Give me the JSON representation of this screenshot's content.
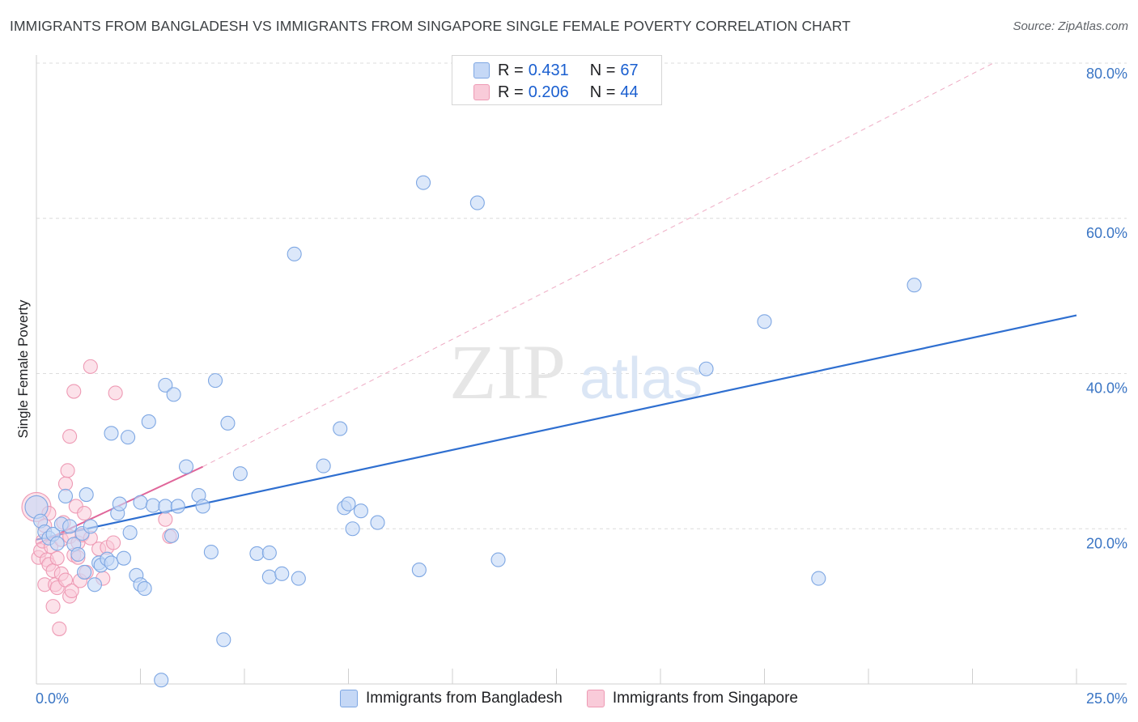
{
  "title": "IMMIGRANTS FROM BANGLADESH VS IMMIGRANTS FROM SINGAPORE SINGLE FEMALE POVERTY CORRELATION CHART",
  "source": "Source: ZipAtlas.com",
  "watermark": {
    "zip": "ZIP",
    "atlas": "atlas"
  },
  "legend": {
    "rows": [
      {
        "r_label": "R =",
        "r_value": "0.431",
        "n_label": "N =",
        "n_value": "67"
      },
      {
        "r_label": "R =",
        "r_value": "0.206",
        "n_label": "N =",
        "n_value": "44"
      }
    ]
  },
  "bottom_legend": [
    "Immigrants from Bangladesh",
    "Immigrants from Singapore"
  ],
  "colors": {
    "bangladesh_fill": "#c5d8f6",
    "bangladesh_stroke": "#7ea7e3",
    "bangladesh_line": "#2f6fd0",
    "singapore_fill": "#f9cbd9",
    "singapore_stroke": "#ee9ab4",
    "singapore_line": "#e0669a",
    "axis_label": "#3a75c4",
    "grid": "#dcdcdc"
  },
  "chart_data": {
    "type": "scatter",
    "title": "IMMIGRANTS FROM BANGLADESH VS IMMIGRANTS FROM SINGAPORE SINGLE FEMALE POVERTY CORRELATION CHART",
    "xlabel": "",
    "ylabel": "Single Female Poverty",
    "xlim": [
      0,
      25
    ],
    "ylim": [
      0,
      80
    ],
    "x_tick_labels": [
      "0.0%",
      "25.0%"
    ],
    "y_ticks": [
      20,
      40,
      60,
      80
    ],
    "y_tick_labels": [
      "20.0%",
      "40.0%",
      "60.0%",
      "80.0%"
    ],
    "grid": true,
    "legend_position": "top-center",
    "series": [
      {
        "name": "Immigrants from Bangladesh",
        "R": 0.431,
        "N": 67,
        "trend": {
          "x": [
            0,
            25
          ],
          "y": [
            18.6,
            47.5
          ],
          "style": "solid"
        },
        "points": [
          [
            0.0,
            22.8
          ],
          [
            0.1,
            21.0
          ],
          [
            0.2,
            19.6
          ],
          [
            0.3,
            18.8
          ],
          [
            0.4,
            19.3
          ],
          [
            0.5,
            18.1
          ],
          [
            0.6,
            20.6
          ],
          [
            0.7,
            24.2
          ],
          [
            0.8,
            20.3
          ],
          [
            0.9,
            18.0
          ],
          [
            1.0,
            16.7
          ],
          [
            1.1,
            19.4
          ],
          [
            1.15,
            14.4
          ],
          [
            1.2,
            24.4
          ],
          [
            1.3,
            20.3
          ],
          [
            1.4,
            12.8
          ],
          [
            1.5,
            15.6
          ],
          [
            1.55,
            15.3
          ],
          [
            1.7,
            16.1
          ],
          [
            1.8,
            15.6
          ],
          [
            1.8,
            32.3
          ],
          [
            1.95,
            22.0
          ],
          [
            2.0,
            23.2
          ],
          [
            2.1,
            16.2
          ],
          [
            2.2,
            31.8
          ],
          [
            2.25,
            19.5
          ],
          [
            2.4,
            14.0
          ],
          [
            2.5,
            12.8
          ],
          [
            2.5,
            23.4
          ],
          [
            2.6,
            12.3
          ],
          [
            2.7,
            33.8
          ],
          [
            2.8,
            23.0
          ],
          [
            3.0,
            0.5
          ],
          [
            3.1,
            38.5
          ],
          [
            3.1,
            22.9
          ],
          [
            3.25,
            19.1
          ],
          [
            3.3,
            37.3
          ],
          [
            3.4,
            22.9
          ],
          [
            3.6,
            28.0
          ],
          [
            3.9,
            24.3
          ],
          [
            4.0,
            22.9
          ],
          [
            4.2,
            17.0
          ],
          [
            4.3,
            39.1
          ],
          [
            4.5,
            5.7
          ],
          [
            4.6,
            33.6
          ],
          [
            4.9,
            27.1
          ],
          [
            5.3,
            16.8
          ],
          [
            5.6,
            13.8
          ],
          [
            5.6,
            16.9
          ],
          [
            5.9,
            14.2
          ],
          [
            6.2,
            55.4
          ],
          [
            6.3,
            13.6
          ],
          [
            6.9,
            28.1
          ],
          [
            7.3,
            32.9
          ],
          [
            7.4,
            22.7
          ],
          [
            7.5,
            23.2
          ],
          [
            7.6,
            20.0
          ],
          [
            7.8,
            22.3
          ],
          [
            8.2,
            20.8
          ],
          [
            9.2,
            14.7
          ],
          [
            9.3,
            64.6
          ],
          [
            10.6,
            62.0
          ],
          [
            11.1,
            16.0
          ],
          [
            16.1,
            40.6
          ],
          [
            17.5,
            46.7
          ],
          [
            18.8,
            13.6
          ],
          [
            21.1,
            51.4
          ]
        ]
      },
      {
        "name": "Immigrants from Singapore",
        "R": 0.206,
        "N": 44,
        "trend": {
          "x": [
            0,
            4.0
          ],
          "y": [
            18.0,
            28.0
          ],
          "style": "solid"
        },
        "trend_extension": {
          "x": [
            4.0,
            23.0
          ],
          "y": [
            28.0,
            80.0
          ],
          "style": "dashed"
        },
        "points": [
          [
            0.0,
            22.8
          ],
          [
            0.05,
            16.3
          ],
          [
            0.1,
            17.2
          ],
          [
            0.15,
            18.4
          ],
          [
            0.2,
            20.4
          ],
          [
            0.2,
            12.8
          ],
          [
            0.25,
            16.0
          ],
          [
            0.3,
            22.0
          ],
          [
            0.3,
            15.4
          ],
          [
            0.35,
            17.7
          ],
          [
            0.4,
            14.6
          ],
          [
            0.4,
            10.0
          ],
          [
            0.45,
            12.8
          ],
          [
            0.5,
            16.2
          ],
          [
            0.5,
            12.4
          ],
          [
            0.55,
            7.1
          ],
          [
            0.6,
            18.6
          ],
          [
            0.6,
            14.2
          ],
          [
            0.65,
            20.8
          ],
          [
            0.7,
            13.4
          ],
          [
            0.7,
            25.8
          ],
          [
            0.75,
            27.5
          ],
          [
            0.8,
            19.0
          ],
          [
            0.8,
            31.9
          ],
          [
            0.8,
            11.3
          ],
          [
            0.85,
            12.0
          ],
          [
            0.9,
            37.7
          ],
          [
            0.9,
            16.6
          ],
          [
            0.95,
            22.9
          ],
          [
            1.0,
            18.2
          ],
          [
            1.0,
            16.3
          ],
          [
            1.05,
            13.3
          ],
          [
            1.1,
            19.2
          ],
          [
            1.15,
            22.0
          ],
          [
            1.2,
            14.4
          ],
          [
            1.3,
            40.9
          ],
          [
            1.3,
            18.8
          ],
          [
            1.5,
            17.4
          ],
          [
            1.6,
            13.6
          ],
          [
            1.7,
            17.6
          ],
          [
            1.85,
            18.2
          ],
          [
            1.9,
            37.5
          ],
          [
            3.1,
            21.2
          ],
          [
            3.2,
            19.0
          ]
        ]
      }
    ]
  }
}
